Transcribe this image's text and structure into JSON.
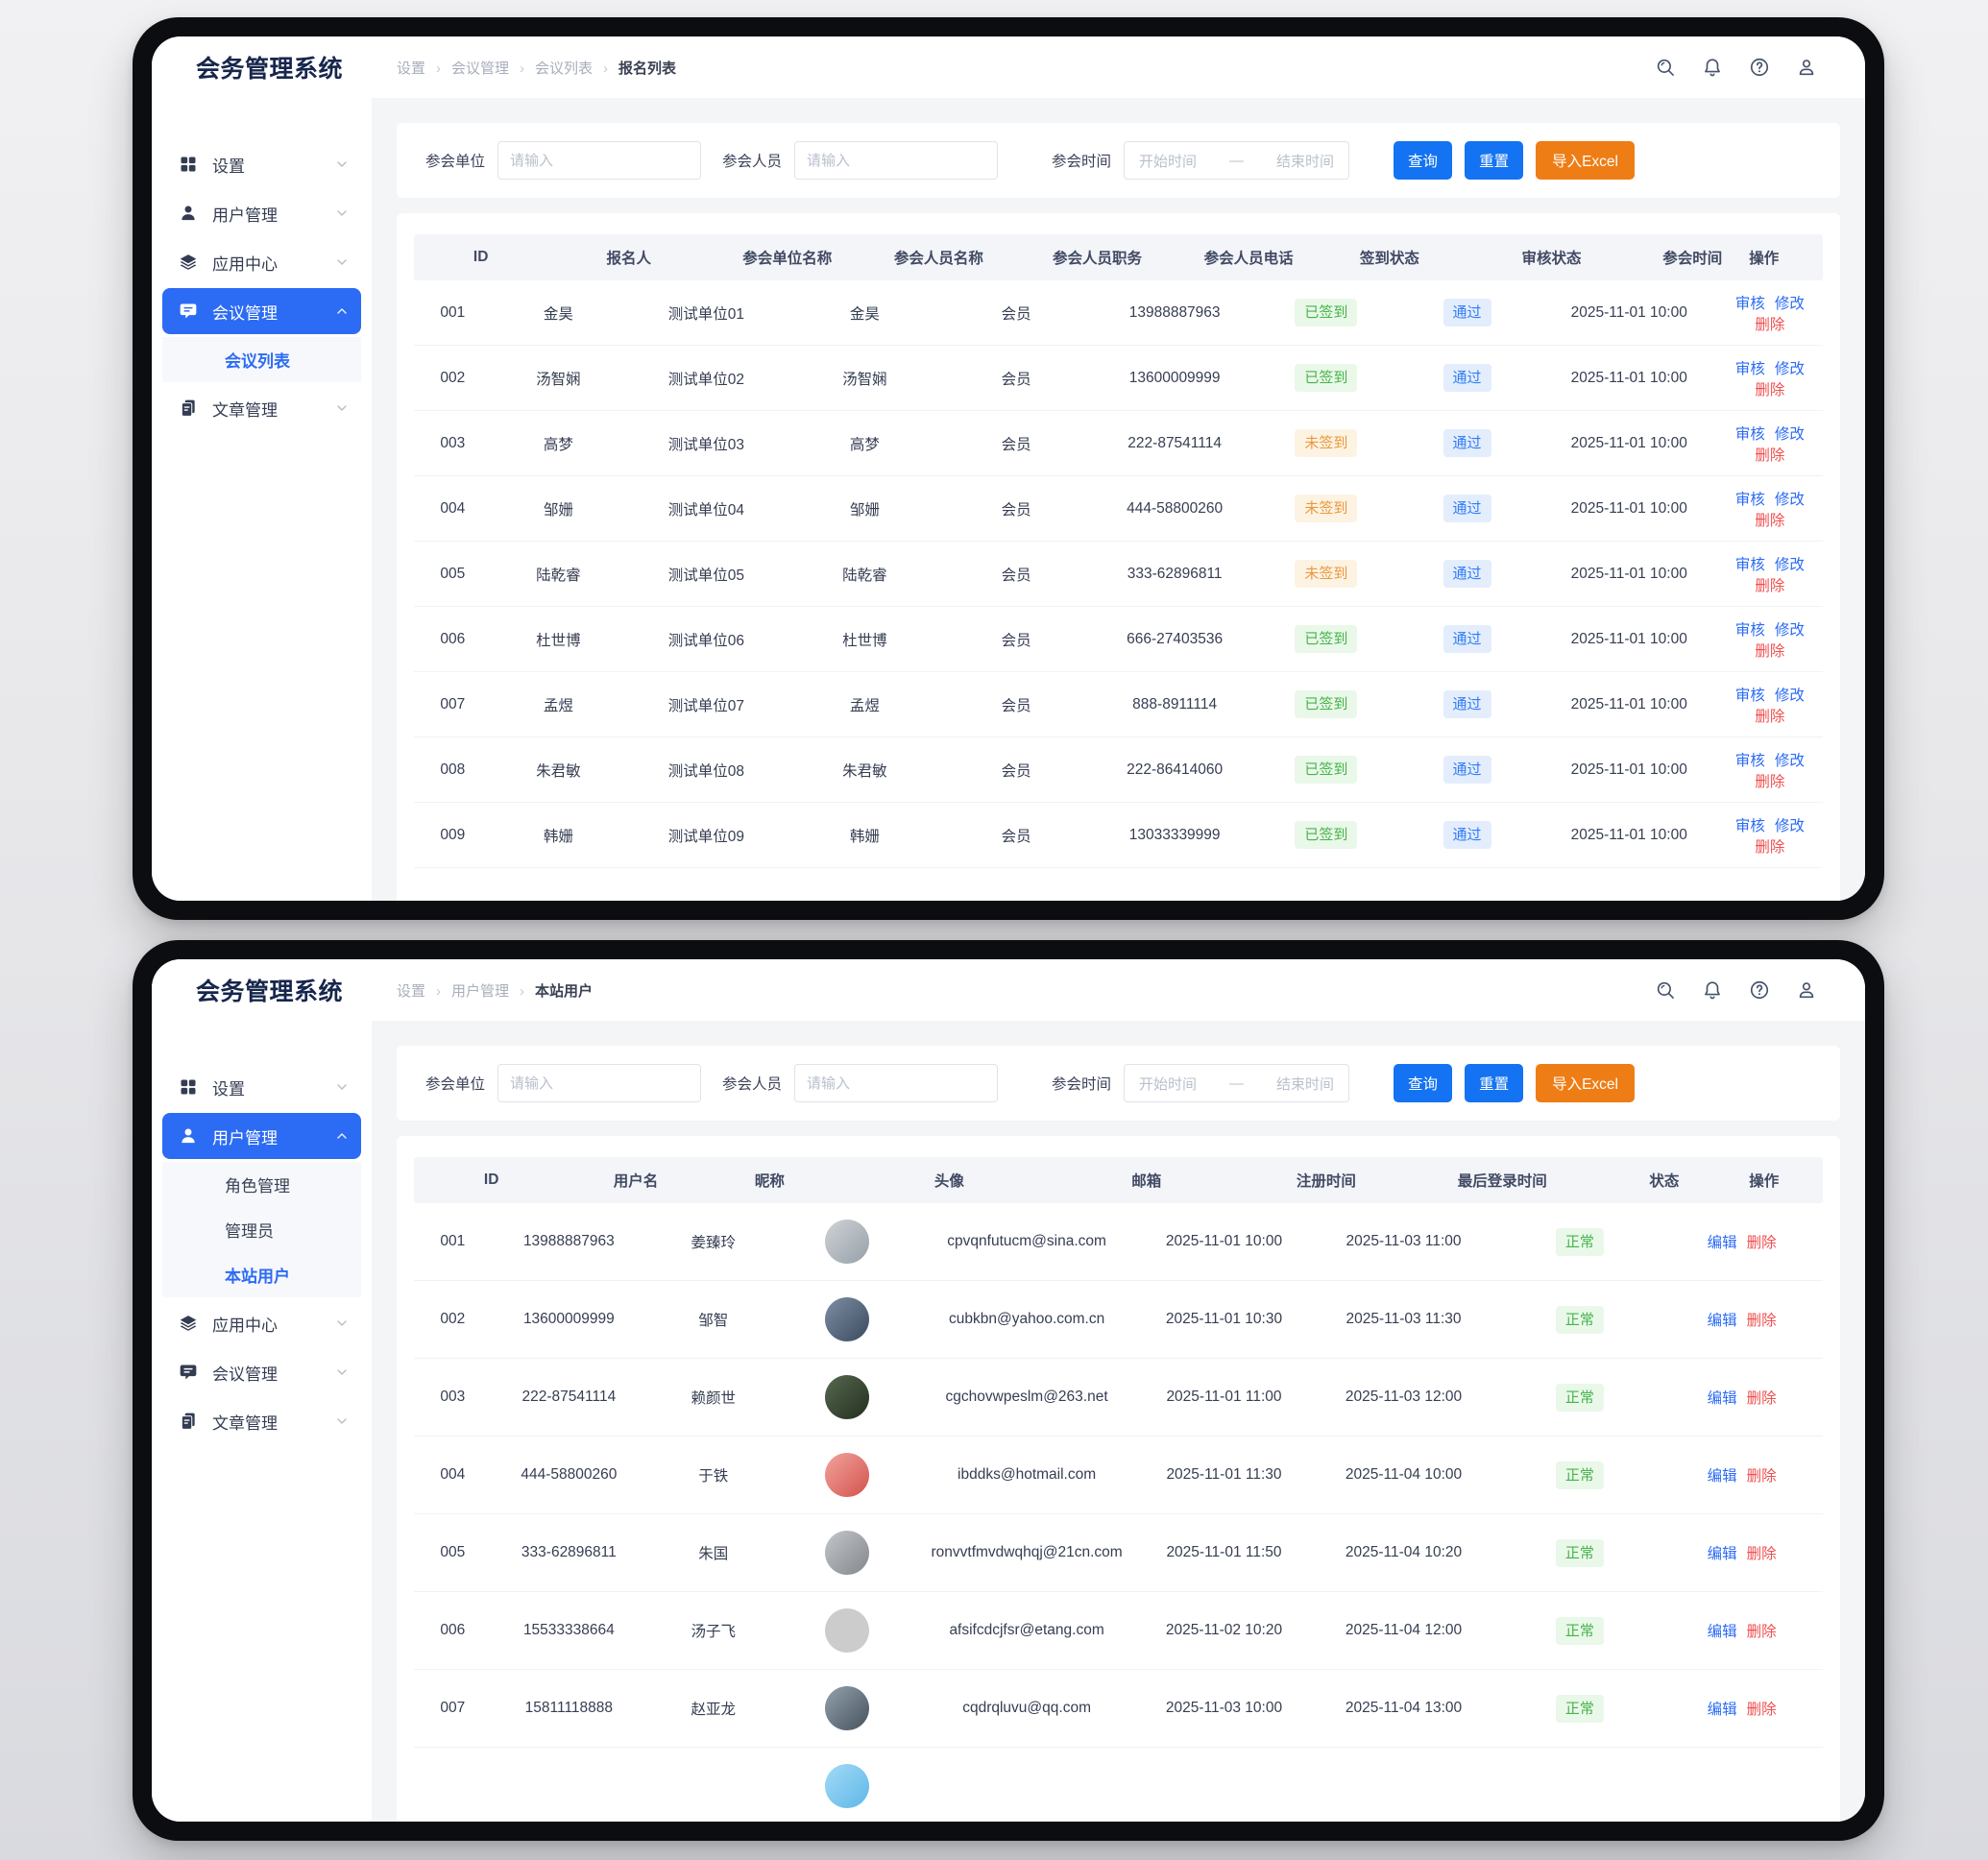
{
  "colors": {
    "primary_blue": "#2c6bf4",
    "button_blue": "#1373f2",
    "button_orange": "#ee7d15",
    "success_green": "#47b34a",
    "warning_orange": "#e9993f",
    "danger_red": "#f04f4f",
    "audit_blue": "#2f7cf6"
  },
  "windows": [
    {
      "logo": "会务管理系统",
      "breadcrumb": [
        {
          "label": "设置",
          "state": ""
        },
        {
          "label": "会议管理",
          "state": ""
        },
        {
          "label": "会议列表",
          "state": ""
        },
        {
          "label": "报名列表",
          "state": "last"
        }
      ],
      "topbar_icons": [
        {
          "icon": "icon-search",
          "name": "search-icon"
        },
        {
          "icon": "icon-bell",
          "name": "bell-icon"
        },
        {
          "icon": "icon-help",
          "name": "help-icon"
        },
        {
          "icon": "icon-person",
          "name": "user-icon"
        }
      ],
      "sidebar": [
        {
          "kind": "parent",
          "icon": "icon-grid",
          "icon_name": "settings-grid-icon",
          "label": "设置",
          "chevron": "down",
          "state": "",
          "name": "sidebar-item-settings"
        },
        {
          "kind": "parent",
          "icon": "icon-user",
          "icon_name": "user-icon",
          "label": "用户管理",
          "chevron": "down",
          "state": "",
          "name": "sidebar-item-user-management"
        },
        {
          "kind": "parent",
          "icon": "icon-layers",
          "icon_name": "app-center-icon",
          "label": "应用中心",
          "chevron": "down",
          "state": "",
          "name": "sidebar-item-app-center"
        },
        {
          "kind": "parent",
          "icon": "icon-chat",
          "icon_name": "meeting-icon",
          "label": "会议管理",
          "chevron": "up",
          "state": "active",
          "name": "sidebar-item-meeting-management"
        },
        {
          "kind": "child",
          "label": "会议列表",
          "state": "active",
          "name": "sidebar-item-meeting-list"
        },
        {
          "kind": "parent",
          "icon": "icon-doc",
          "icon_name": "article-icon",
          "label": "文章管理",
          "chevron": "down",
          "state": "",
          "name": "sidebar-item-article-management"
        }
      ],
      "filters": {
        "unit_label": "参会单位",
        "unit_placeholder": "请输入",
        "person_label": "参会人员",
        "person_placeholder": "请输入",
        "time_label": "参会时间",
        "time_start": "开始时间",
        "time_dash": "—",
        "time_end": "结束时间",
        "search_btn": "查询",
        "reset_btn": "重置",
        "import_btn": "导入Excel"
      },
      "table": {
        "headers": [
          {
            "label": "ID"
          },
          {
            "label": "报名人"
          },
          {
            "label": "参会单位名称"
          },
          {
            "label": "参会人员名称"
          },
          {
            "label": "参会人员职务"
          },
          {
            "label": "参会人员电话"
          },
          {
            "label": "签到状态"
          },
          {
            "label": "审核状态"
          },
          {
            "label": "参会时间"
          },
          {
            "label": "操作"
          }
        ],
        "rows": [
          {
            "id": "001",
            "applicant": "金昊",
            "unit": "测试单位01",
            "person": "金昊",
            "title": "会员",
            "phone": "13988887963",
            "checkin": "已签到",
            "checkin_state": "signed",
            "audit": "通过",
            "audit_state": "pass",
            "time": "2025-11-01 10:00",
            "review": "审核",
            "edit": "修改",
            "del": "删除"
          },
          {
            "id": "002",
            "applicant": "汤智娴",
            "unit": "测试单位02",
            "person": "汤智娴",
            "title": "会员",
            "phone": "13600009999",
            "checkin": "已签到",
            "checkin_state": "signed",
            "audit": "通过",
            "audit_state": "pass",
            "time": "2025-11-01 10:00",
            "review": "审核",
            "edit": "修改",
            "del": "删除"
          },
          {
            "id": "003",
            "applicant": "高梦",
            "unit": "测试单位03",
            "person": "高梦",
            "title": "会员",
            "phone": "222-87541114",
            "checkin": "未签到",
            "checkin_state": "unsigned",
            "audit": "通过",
            "audit_state": "pass",
            "time": "2025-11-01 10:00",
            "review": "审核",
            "edit": "修改",
            "del": "删除"
          },
          {
            "id": "004",
            "applicant": "邹姗",
            "unit": "测试单位04",
            "person": "邹姗",
            "title": "会员",
            "phone": "444-58800260",
            "checkin": "未签到",
            "checkin_state": "unsigned",
            "audit": "通过",
            "audit_state": "pass",
            "time": "2025-11-01 10:00",
            "review": "审核",
            "edit": "修改",
            "del": "删除"
          },
          {
            "id": "005",
            "applicant": "陆乾睿",
            "unit": "测试单位05",
            "person": "陆乾睿",
            "title": "会员",
            "phone": "333-62896811",
            "checkin": "未签到",
            "checkin_state": "unsigned",
            "audit": "通过",
            "audit_state": "pass",
            "time": "2025-11-01 10:00",
            "review": "审核",
            "edit": "修改",
            "del": "删除"
          },
          {
            "id": "006",
            "applicant": "杜世博",
            "unit": "测试单位06",
            "person": "杜世博",
            "title": "会员",
            "phone": "666-27403536",
            "checkin": "已签到",
            "checkin_state": "signed",
            "audit": "通过",
            "audit_state": "pass",
            "time": "2025-11-01 10:00",
            "review": "审核",
            "edit": "修改",
            "del": "删除"
          },
          {
            "id": "007",
            "applicant": "孟煜",
            "unit": "测试单位07",
            "person": "孟煜",
            "title": "会员",
            "phone": "888-8911114",
            "checkin": "已签到",
            "checkin_state": "signed",
            "audit": "通过",
            "audit_state": "pass",
            "time": "2025-11-01 10:00",
            "review": "审核",
            "edit": "修改",
            "del": "删除"
          },
          {
            "id": "008",
            "applicant": "朱君敏",
            "unit": "测试单位08",
            "person": "朱君敏",
            "title": "会员",
            "phone": "222-86414060",
            "checkin": "已签到",
            "checkin_state": "signed",
            "audit": "通过",
            "audit_state": "pass",
            "time": "2025-11-01 10:00",
            "review": "审核",
            "edit": "修改",
            "del": "删除"
          },
          {
            "id": "009",
            "applicant": "韩姗",
            "unit": "测试单位09",
            "person": "韩姗",
            "title": "会员",
            "phone": "13033339999",
            "checkin": "已签到",
            "checkin_state": "signed",
            "audit": "通过",
            "audit_state": "pass",
            "time": "2025-11-01 10:00",
            "review": "审核",
            "edit": "修改",
            "del": "删除"
          }
        ]
      }
    },
    {
      "logo": "会务管理系统",
      "breadcrumb": [
        {
          "label": "设置",
          "state": ""
        },
        {
          "label": "用户管理",
          "state": ""
        },
        {
          "label": "本站用户",
          "state": "last"
        }
      ],
      "topbar_icons": [
        {
          "icon": "icon-search",
          "name": "search-icon"
        },
        {
          "icon": "icon-bell",
          "name": "bell-icon"
        },
        {
          "icon": "icon-help",
          "name": "help-icon"
        },
        {
          "icon": "icon-person",
          "name": "user-icon"
        }
      ],
      "sidebar": [
        {
          "kind": "parent",
          "icon": "icon-grid",
          "icon_name": "settings-grid-icon",
          "label": "设置",
          "chevron": "down",
          "state": "",
          "name": "sidebar-item-settings"
        },
        {
          "kind": "parent",
          "icon": "icon-user",
          "icon_name": "user-icon",
          "label": "用户管理",
          "chevron": "up",
          "state": "active",
          "name": "sidebar-item-user-management"
        },
        {
          "kind": "child",
          "label": "角色管理",
          "state": "",
          "name": "sidebar-item-role-management"
        },
        {
          "kind": "child",
          "label": "管理员",
          "state": "",
          "name": "sidebar-item-administrators"
        },
        {
          "kind": "child",
          "label": "本站用户",
          "state": "active",
          "name": "sidebar-item-site-users"
        },
        {
          "kind": "parent",
          "icon": "icon-layers",
          "icon_name": "app-center-icon",
          "label": "应用中心",
          "chevron": "down",
          "state": "",
          "name": "sidebar-item-app-center"
        },
        {
          "kind": "parent",
          "icon": "icon-chat",
          "icon_name": "meeting-icon",
          "label": "会议管理",
          "chevron": "down",
          "state": "",
          "name": "sidebar-item-meeting-management"
        },
        {
          "kind": "parent",
          "icon": "icon-doc",
          "icon_name": "article-icon",
          "label": "文章管理",
          "chevron": "down",
          "state": "",
          "name": "sidebar-item-article-management"
        }
      ],
      "filters": {
        "unit_label": "参会单位",
        "unit_placeholder": "请输入",
        "person_label": "参会人员",
        "person_placeholder": "请输入",
        "time_label": "参会时间",
        "time_start": "开始时间",
        "time_dash": "—",
        "time_end": "结束时间",
        "search_btn": "查询",
        "reset_btn": "重置",
        "import_btn": "导入Excel"
      },
      "table": {
        "headers": [
          {
            "label": "ID"
          },
          {
            "label": "用户名"
          },
          {
            "label": "昵称"
          },
          {
            "label": "头像"
          },
          {
            "label": "邮箱"
          },
          {
            "label": "注册时间"
          },
          {
            "label": "最后登录时间"
          },
          {
            "label": "状态"
          },
          {
            "label": "操作"
          }
        ],
        "rows": [
          {
            "id": "001",
            "username": "13988887963",
            "nickname": "姜臻玲",
            "avatar": [
              "#cfd3d6",
              "#96a0a9"
            ],
            "email": "cpvqnfutucm@sina.com",
            "reg_time": "2025-11-01 10:00",
            "last_login": "2025-11-03 11:00",
            "status": "正常",
            "status_state": "normal",
            "edit": "编辑",
            "del": "删除"
          },
          {
            "id": "002",
            "username": "13600009999",
            "nickname": "邹智",
            "avatar": [
              "#7d8fa5",
              "#3b4a5e"
            ],
            "email": "cubkbn@yahoo.com.cn",
            "reg_time": "2025-11-01 10:30",
            "last_login": "2025-11-03 11:30",
            "status": "正常",
            "status_state": "normal",
            "edit": "编辑",
            "del": "删除"
          },
          {
            "id": "003",
            "username": "222-87541114",
            "nickname": "赖颜世",
            "avatar": [
              "#57684f",
              "#232f1f"
            ],
            "email": "cgchovwpeslm@263.net",
            "reg_time": "2025-11-01 11:00",
            "last_login": "2025-11-03 12:00",
            "status": "正常",
            "status_state": "normal",
            "edit": "编辑",
            "del": "删除"
          },
          {
            "id": "004",
            "username": "444-58800260",
            "nickname": "于铁",
            "avatar": [
              "#f2a49d",
              "#d4524d"
            ],
            "email": "ibddks@hotmail.com",
            "reg_time": "2025-11-01 11:30",
            "last_login": "2025-11-04 10:00",
            "status": "正常",
            "status_state": "normal",
            "edit": "编辑",
            "del": "删除"
          },
          {
            "id": "005",
            "username": "333-62896811",
            "nickname": "朱国",
            "avatar": [
              "#c3c6ca",
              "#83878c"
            ],
            "email": "ronvvtfmvdwqhqj@21cn.com",
            "reg_time": "2025-11-01 11:50",
            "last_login": "2025-11-04 10:20",
            "status": "正常",
            "status_state": "normal",
            "edit": "编辑",
            "del": "删除"
          },
          {
            "id": "006",
            "username": "15533338664",
            "nickname": "汤子飞",
            "avatar": [
              "#ece2cd",
              "#c9b halfback"
            ],
            "email": "afsifcdcjfsr@etang.com",
            "reg_time": "2025-11-02 10:20",
            "last_login": "2025-11-04 12:00",
            "status": "正常",
            "status_state": "normal",
            "edit": "编辑",
            "del": "删除"
          },
          {
            "id": "007",
            "username": "15811118888",
            "nickname": "赵亚龙",
            "avatar": [
              "#93a2ae",
              "#46525d"
            ],
            "email": "cqdrqluvu@qq.com",
            "reg_time": "2025-11-03 10:00",
            "last_login": "2025-11-04 13:00",
            "status": "正常",
            "status_state": "normal",
            "edit": "编辑",
            "del": "删除"
          },
          {
            "id": "",
            "username": "",
            "nickname": "",
            "avatar": [
              "#a2dbf6",
              "#5fb7e8"
            ],
            "email": "",
            "reg_time": "",
            "last_login": "",
            "status": "",
            "status_state": "",
            "edit": "",
            "del": ""
          }
        ]
      }
    }
  ]
}
